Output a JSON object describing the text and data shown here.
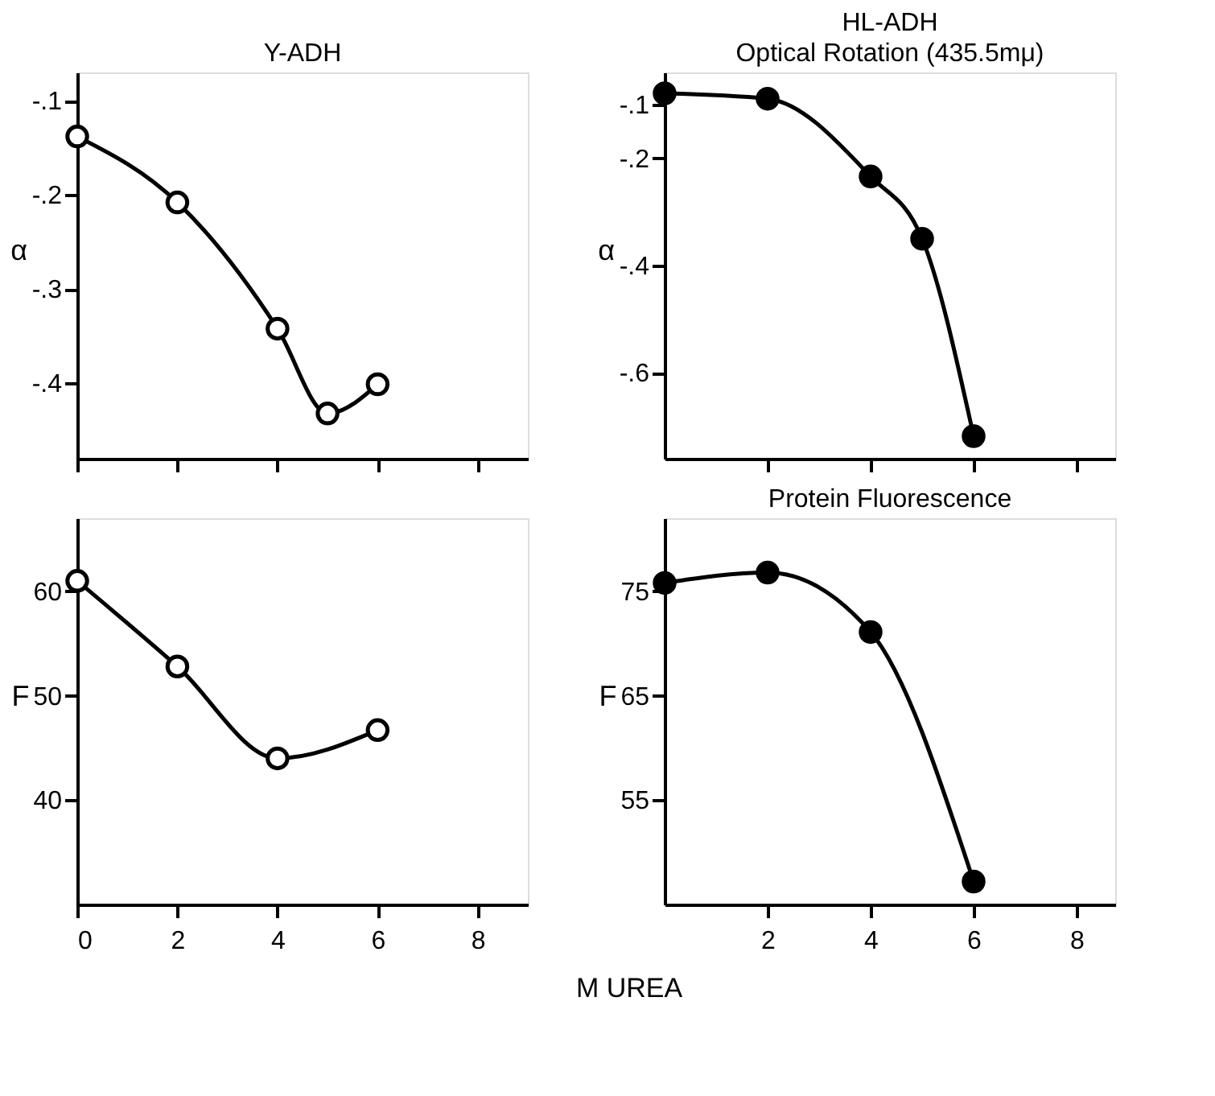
{
  "chart_data": [
    {
      "type": "line",
      "title": "Y-ADH",
      "ylabel": "α",
      "marker": "circle",
      "line_style": "solid",
      "color": "#000000",
      "x": [
        0,
        2,
        4,
        5,
        6
      ],
      "values": [
        -0.138,
        -0.208,
        -0.342,
        -0.432,
        -0.401
      ],
      "xlim": [
        0,
        9
      ],
      "ylim": [
        -0.48,
        -0.07
      ],
      "xticks": [
        {
          "value": 0,
          "label": null
        },
        {
          "value": 2,
          "label": null
        },
        {
          "value": 4,
          "label": null
        },
        {
          "value": 6,
          "label": null
        },
        {
          "value": 8,
          "label": null
        }
      ],
      "yticks": [
        {
          "value": -0.1,
          "label": "-.1"
        },
        {
          "value": -0.2,
          "label": "-.2"
        },
        {
          "value": -0.3,
          "label": "-.3"
        },
        {
          "value": -0.4,
          "label": "-.4"
        }
      ],
      "tick_labels": "y"
    },
    {
      "type": "line",
      "title": "HL-ADH",
      "subtitle": "Optical Rotation (435.5mμ)",
      "ylabel": "α",
      "marker": "circle",
      "line_style": "solid",
      "color": "#000000",
      "x": [
        0,
        2,
        4,
        5,
        6
      ],
      "values": [
        -0.079,
        -0.089,
        -0.234,
        -0.35,
        -0.718
      ],
      "xlim": [
        0,
        8.75
      ],
      "ylim": [
        -0.76,
        -0.04
      ],
      "xticks": [
        {
          "value": 2,
          "label": null
        },
        {
          "value": 4,
          "label": null
        },
        {
          "value": 6,
          "label": null
        },
        {
          "value": 8,
          "label": null
        }
      ],
      "yticks": [
        {
          "value": -0.1,
          "label": "-.1"
        },
        {
          "value": -0.2,
          "label": "-.2"
        },
        {
          "value": -0.4,
          "label": "-.4"
        },
        {
          "value": -0.6,
          "label": "-.6"
        }
      ],
      "tick_labels": "y"
    },
    {
      "type": "line",
      "xlabel": "M UREA",
      "ylabel": "F",
      "marker": "circle",
      "line_style": "solid",
      "color": "#000000",
      "x": [
        0,
        2,
        4,
        6
      ],
      "values": [
        61,
        52.8,
        44,
        46.7
      ],
      "xlim": [
        0,
        9
      ],
      "ylim": [
        30,
        67
      ],
      "xticks": [
        0,
        2,
        4,
        6,
        8
      ],
      "yticks": [
        40,
        50,
        60
      ]
    },
    {
      "type": "line",
      "title": "Protein Fluorescence",
      "ylabel": "F",
      "marker": "circle",
      "line_style": "solid",
      "color": "#000000",
      "x": [
        0,
        2,
        4,
        6
      ],
      "values": [
        75.8,
        76.8,
        71.1,
        47.2
      ],
      "xlim": [
        0,
        8.75
      ],
      "ylim": [
        45,
        82
      ],
      "xticks": [
        2,
        4,
        6,
        8
      ],
      "yticks": [
        55,
        65,
        75
      ]
    }
  ]
}
